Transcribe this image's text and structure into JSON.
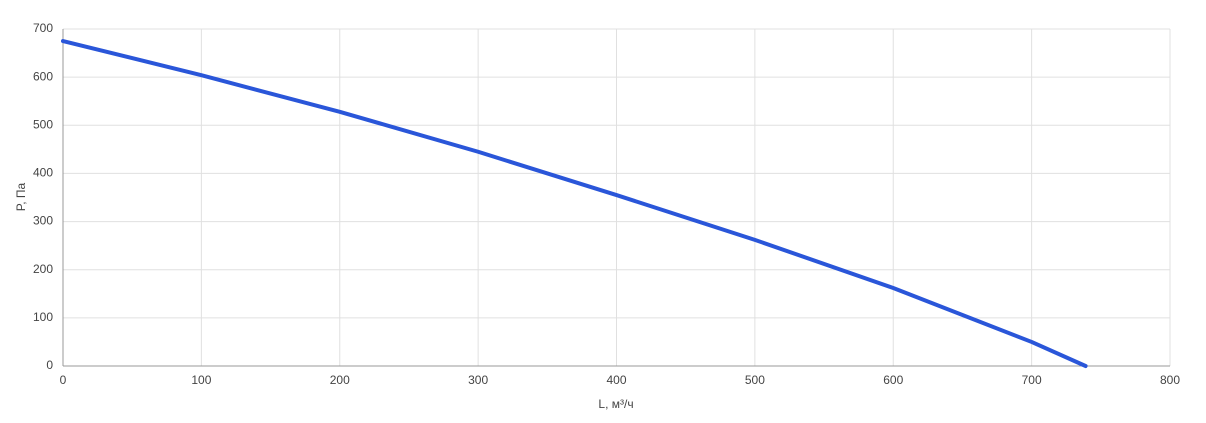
{
  "chart_data": {
    "type": "line",
    "xlabel": "L, м³/ч",
    "ylabel": "P, Па",
    "x": [
      0,
      100,
      200,
      300,
      400,
      500,
      600,
      700,
      739
    ],
    "series": [
      {
        "color": "#2a56d9",
        "values": [
          675,
          604,
          528,
          445,
          355,
          262,
          162,
          50,
          0
        ]
      }
    ],
    "xlim": [
      0,
      800
    ],
    "xticks": [
      0,
      100,
      200,
      300,
      400,
      500,
      600,
      700,
      800
    ],
    "ylim": [
      0,
      700
    ],
    "yticks": [
      0,
      100,
      200,
      300,
      400,
      500,
      600,
      700
    ],
    "grid": true
  }
}
